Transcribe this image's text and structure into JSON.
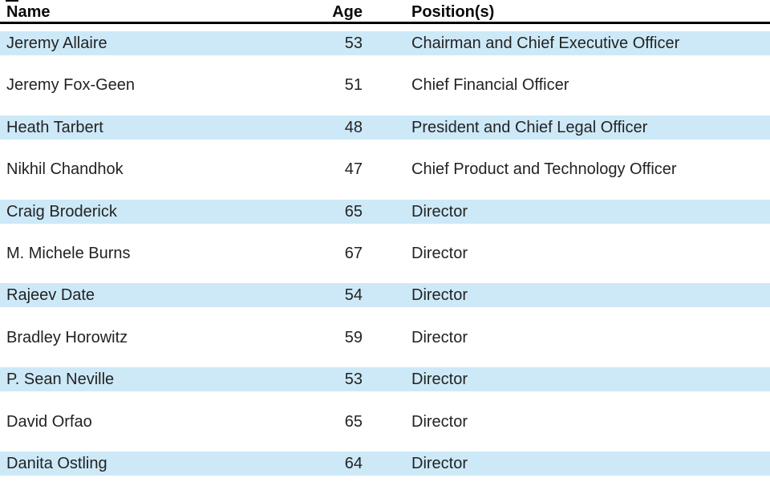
{
  "table": {
    "highlight_color": "#cde9f8",
    "header_rule_color": "#000000",
    "columns": {
      "name": "Name",
      "age": "Age",
      "positions": "Position(s)"
    },
    "rows": [
      {
        "name": "Jeremy Allaire",
        "age": "53",
        "position": "Chairman and Chief Executive Officer"
      },
      {
        "name": "Jeremy Fox-Geen",
        "age": "51",
        "position": "Chief Financial Officer"
      },
      {
        "name": "Heath Tarbert",
        "age": "48",
        "position": "President and Chief Legal Officer"
      },
      {
        "name": "Nikhil Chandhok",
        "age": "47",
        "position": "Chief Product and Technology Officer"
      },
      {
        "name": "Craig Broderick",
        "age": "65",
        "position": "Director"
      },
      {
        "name": "M. Michele Burns",
        "age": "67",
        "position": "Director"
      },
      {
        "name": "Rajeev Date",
        "age": "54",
        "position": "Director"
      },
      {
        "name": "Bradley Horowitz",
        "age": "59",
        "position": "Director"
      },
      {
        "name": "P. Sean Neville",
        "age": "53",
        "position": "Director"
      },
      {
        "name": "David Orfao",
        "age": "65",
        "position": "Director"
      },
      {
        "name": "Danita Ostling",
        "age": "64",
        "position": "Director"
      }
    ]
  }
}
